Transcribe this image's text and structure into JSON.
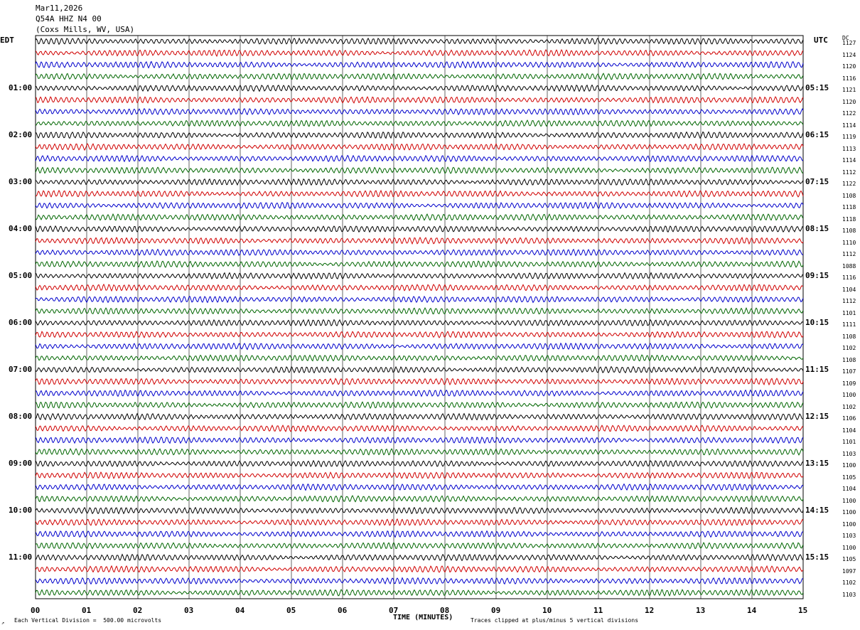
{
  "header": {
    "date": "Mar11,2026",
    "station": "Q54A HHZ N4 00",
    "location": "(Coxs Mills, WV, USA)"
  },
  "left_zone": "EDT",
  "right_zone": "UTC",
  "dc_header": "DC",
  "xlabel": "TIME (MINUTES)",
  "footer": {
    "scale": "Each Vertical Division =  500.00 microvolts",
    "clip": "Traces clipped at plus/minus 5 vertical divisions"
  },
  "chart_data": {
    "type": "line",
    "title": "Mar11,2026 Q54A HHZ N4 00 (Coxs Mills, WV, USA)",
    "xlabel": "TIME (MINUTES)",
    "xlim": [
      0,
      15
    ],
    "x_ticks": [
      "00",
      "01",
      "02",
      "03",
      "04",
      "05",
      "06",
      "07",
      "08",
      "09",
      "10",
      "11",
      "12",
      "13",
      "14",
      "15"
    ],
    "trace_colors": [
      "#000000",
      "#d00000",
      "#0000cc",
      "#006600"
    ],
    "left_hour_labels": [
      "01:00",
      "02:00",
      "03:00",
      "04:00",
      "05:00",
      "06:00",
      "07:00",
      "08:00",
      "09:00",
      "10:00",
      "11:00"
    ],
    "right_hour_labels": [
      "05:15",
      "06:15",
      "07:15",
      "08:15",
      "09:15",
      "10:15",
      "11:15",
      "12:15",
      "13:15",
      "14:15",
      "15:15"
    ],
    "trace_dc_offsets": [
      1127,
      1124,
      1120,
      1116,
      1121,
      1120,
      1122,
      1114,
      1119,
      1113,
      1114,
      1112,
      1122,
      1108,
      1118,
      1118,
      1108,
      1110,
      1112,
      1088,
      1116,
      1104,
      1112,
      1101,
      1111,
      1108,
      1102,
      1108,
      1107,
      1109,
      1100,
      1102,
      1106,
      1104,
      1101,
      1103,
      1100,
      1105,
      1104,
      1100,
      1100,
      1100,
      1103,
      1100,
      1105,
      1097,
      1102,
      1103
    ],
    "trace_count": 48,
    "minutes_per_trace": 15
  }
}
